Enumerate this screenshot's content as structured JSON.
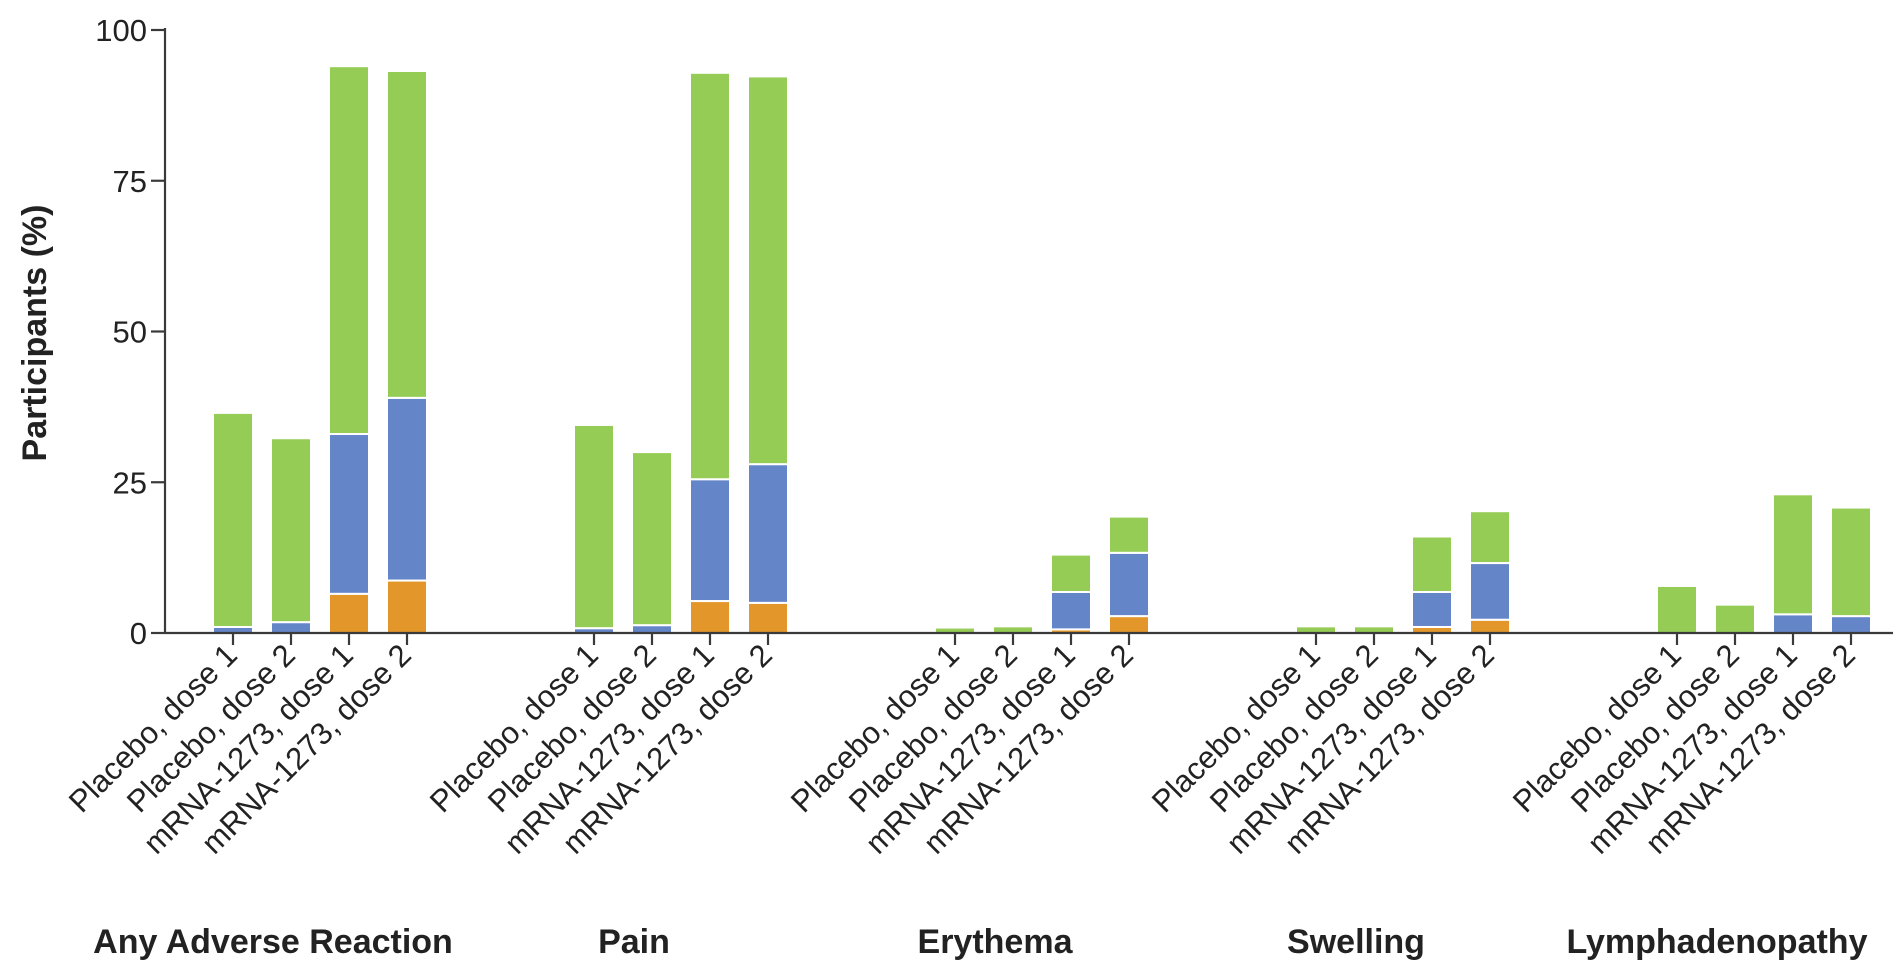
{
  "chart_data": {
    "type": "bar",
    "stacked": true,
    "ylabel": "Participants (%)",
    "ylim": [
      0,
      100
    ],
    "yticks": [
      0,
      25,
      50,
      75,
      100
    ],
    "grid": false,
    "legend": "none",
    "colors": {
      "grade_3": "#e3972b",
      "grade_2": "#6585c9",
      "grade_1": "#95cc55"
    },
    "groups": [
      {
        "name": "Any Adverse Reaction",
        "bars": [
          {
            "label": "Placebo, dose 1",
            "segments": [
              0,
              1,
              35.5
            ]
          },
          {
            "label": "Placebo, dose 2",
            "segments": [
              0,
              1.8,
              30.5
            ]
          },
          {
            "label": "mRNA-1273, dose 1",
            "segments": [
              6.5,
              26.5,
              61
            ]
          },
          {
            "label": "mRNA-1273, dose 2",
            "segments": [
              8.7,
              30.3,
              54.2
            ]
          }
        ]
      },
      {
        "name": "Pain",
        "bars": [
          {
            "label": "Placebo, dose 1",
            "segments": [
              0,
              0.8,
              33.7
            ]
          },
          {
            "label": "Placebo, dose 2",
            "segments": [
              0,
              1.3,
              28.7
            ]
          },
          {
            "label": "mRNA-1273, dose 1",
            "segments": [
              5.3,
              20.2,
              67.4
            ]
          },
          {
            "label": "mRNA-1273, dose 2",
            "segments": [
              5,
              23,
              64.3
            ]
          }
        ]
      },
      {
        "name": "Erythema",
        "bars": [
          {
            "label": "Placebo, dose 1",
            "segments": [
              0,
              0,
              0.9
            ]
          },
          {
            "label": "Placebo, dose 2",
            "segments": [
              0,
              0,
              1.1
            ]
          },
          {
            "label": "mRNA-1273, dose 1",
            "segments": [
              0.6,
              6.2,
              6.2
            ]
          },
          {
            "label": "mRNA-1273, dose 2",
            "segments": [
              2.8,
              10.5,
              6
            ]
          }
        ]
      },
      {
        "name": "Swelling",
        "bars": [
          {
            "label": "Placebo, dose 1",
            "segments": [
              0,
              0,
              1.1
            ]
          },
          {
            "label": "Placebo, dose 2",
            "segments": [
              0,
              0,
              1.1
            ]
          },
          {
            "label": "mRNA-1273, dose 1",
            "segments": [
              1,
              5.8,
              9.2
            ]
          },
          {
            "label": "mRNA-1273, dose 2",
            "segments": [
              2.2,
              9.4,
              8.6
            ]
          }
        ]
      },
      {
        "name": "Lymphadenopathy",
        "bars": [
          {
            "label": "Placebo, dose 1",
            "segments": [
              0,
              0,
              7.8
            ]
          },
          {
            "label": "Placebo, dose 2",
            "segments": [
              0,
              0,
              4.7
            ]
          },
          {
            "label": "mRNA-1273, dose 1",
            "segments": [
              0,
              3.1,
              19.9
            ]
          },
          {
            "label": "mRNA-1273, dose 2",
            "segments": [
              0,
              2.8,
              18
            ]
          }
        ]
      }
    ]
  }
}
